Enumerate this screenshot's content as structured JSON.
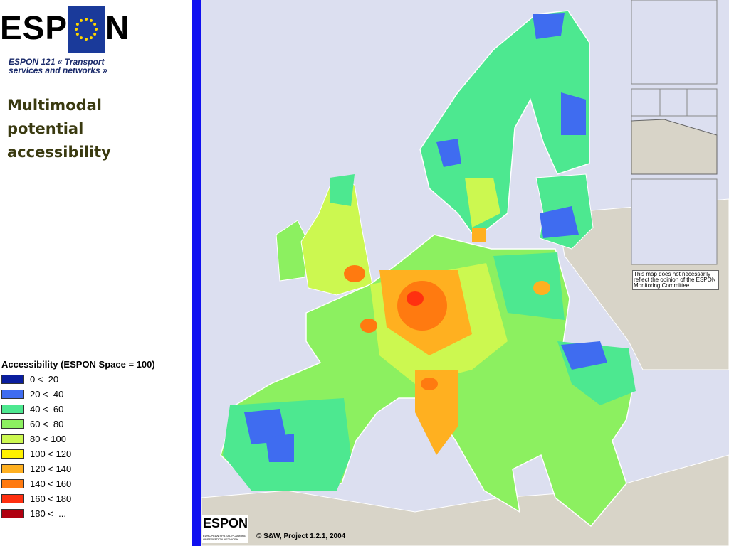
{
  "logo": {
    "left": "ESP",
    "right": "N"
  },
  "subtitle": "ESPON 121 « Transport services and networks »",
  "title": "Multimodal potential accessibility",
  "legend": {
    "title": "Accessibility (ESPON Space = 100)",
    "items": [
      {
        "label": "0 <  20",
        "color": "#0a1e9e"
      },
      {
        "label": "20 <  40",
        "color": "#3f6cf0"
      },
      {
        "label": "40 <  60",
        "color": "#4de890"
      },
      {
        "label": "60 <  80",
        "color": "#8cf060"
      },
      {
        "label": "80 < 100",
        "color": "#ccf850"
      },
      {
        "label": "100 < 120",
        "color": "#fff200"
      },
      {
        "label": "120 < 140",
        "color": "#ffb020"
      },
      {
        "label": "140 < 160",
        "color": "#ff7a10"
      },
      {
        "label": "160 < 180",
        "color": "#ff3010"
      },
      {
        "label": "180 <  ...",
        "color": "#b00010"
      }
    ]
  },
  "note": "This map does not necessarily reflect the opinion of the ESPON Monitoring Committee",
  "footer_logo": {
    "name": "ESPON",
    "tagline": "EUROPEAN SPATIAL PLANNING OBSERVATION NETWORK"
  },
  "copyright": "© S&W, Project 1.2.1, 2004"
}
